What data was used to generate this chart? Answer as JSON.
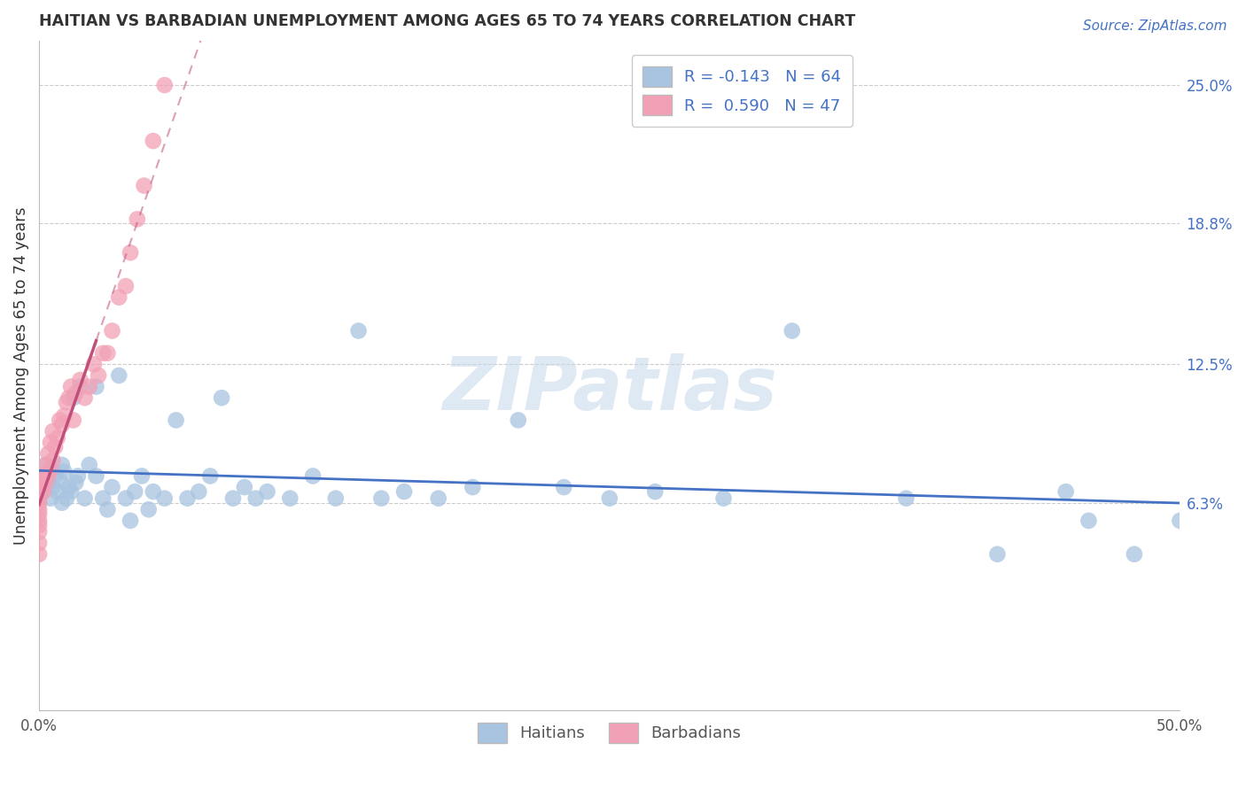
{
  "title": "HAITIAN VS BARBADIAN UNEMPLOYMENT AMONG AGES 65 TO 74 YEARS CORRELATION CHART",
  "source": "Source: ZipAtlas.com",
  "ylabel": "Unemployment Among Ages 65 to 74 years",
  "xlim": [
    0.0,
    0.5
  ],
  "ylim": [
    -0.03,
    0.27
  ],
  "ytick_labels_right": [
    "25.0%",
    "18.8%",
    "12.5%",
    "6.3%"
  ],
  "ytick_vals_right": [
    0.25,
    0.188,
    0.125,
    0.063
  ],
  "legend_r1": "R = -0.143   N = 64",
  "legend_r2": "R =  0.590   N = 47",
  "color_haitians": "#a8c4e0",
  "color_barbadians": "#f2a0b5",
  "color_line_haitians": "#4472c4",
  "color_line_barbadians": "#c0507a",
  "watermark": "ZIPatlas",
  "haitians_x": [
    0.001,
    0.002,
    0.003,
    0.004,
    0.005,
    0.005,
    0.006,
    0.007,
    0.008,
    0.009,
    0.01,
    0.01,
    0.011,
    0.012,
    0.013,
    0.014,
    0.015,
    0.016,
    0.017,
    0.018,
    0.02,
    0.022,
    0.025,
    0.025,
    0.028,
    0.03,
    0.032,
    0.035,
    0.038,
    0.04,
    0.042,
    0.045,
    0.048,
    0.05,
    0.055,
    0.06,
    0.065,
    0.07,
    0.075,
    0.08,
    0.085,
    0.09,
    0.095,
    0.1,
    0.11,
    0.12,
    0.13,
    0.14,
    0.15,
    0.16,
    0.175,
    0.19,
    0.21,
    0.23,
    0.25,
    0.27,
    0.3,
    0.33,
    0.38,
    0.42,
    0.45,
    0.46,
    0.48,
    0.5
  ],
  "haitians_y": [
    0.068,
    0.075,
    0.08,
    0.072,
    0.078,
    0.065,
    0.07,
    0.075,
    0.068,
    0.073,
    0.063,
    0.08,
    0.077,
    0.065,
    0.07,
    0.068,
    0.11,
    0.072,
    0.075,
    0.115,
    0.065,
    0.08,
    0.075,
    0.115,
    0.065,
    0.06,
    0.07,
    0.12,
    0.065,
    0.055,
    0.068,
    0.075,
    0.06,
    0.068,
    0.065,
    0.1,
    0.065,
    0.068,
    0.075,
    0.11,
    0.065,
    0.07,
    0.065,
    0.068,
    0.065,
    0.075,
    0.065,
    0.14,
    0.065,
    0.068,
    0.065,
    0.07,
    0.1,
    0.07,
    0.065,
    0.068,
    0.065,
    0.14,
    0.065,
    0.04,
    0.068,
    0.055,
    0.04,
    0.055
  ],
  "barbadians_x": [
    0.0,
    0.0,
    0.0,
    0.0,
    0.0,
    0.0,
    0.0,
    0.0,
    0.0,
    0.0,
    0.001,
    0.001,
    0.002,
    0.002,
    0.003,
    0.003,
    0.004,
    0.004,
    0.005,
    0.005,
    0.006,
    0.006,
    0.007,
    0.008,
    0.009,
    0.01,
    0.011,
    0.012,
    0.013,
    0.014,
    0.015,
    0.016,
    0.018,
    0.02,
    0.022,
    0.024,
    0.026,
    0.028,
    0.03,
    0.032,
    0.035,
    0.038,
    0.04,
    0.043,
    0.046,
    0.05,
    0.055
  ],
  "barbadians_y": [
    0.04,
    0.045,
    0.05,
    0.053,
    0.055,
    0.058,
    0.06,
    0.063,
    0.065,
    0.068,
    0.07,
    0.073,
    0.068,
    0.075,
    0.072,
    0.08,
    0.075,
    0.085,
    0.078,
    0.09,
    0.082,
    0.095,
    0.088,
    0.092,
    0.1,
    0.098,
    0.102,
    0.108,
    0.11,
    0.115,
    0.1,
    0.112,
    0.118,
    0.11,
    0.115,
    0.125,
    0.12,
    0.13,
    0.13,
    0.14,
    0.155,
    0.16,
    0.175,
    0.19,
    0.205,
    0.225,
    0.25
  ]
}
